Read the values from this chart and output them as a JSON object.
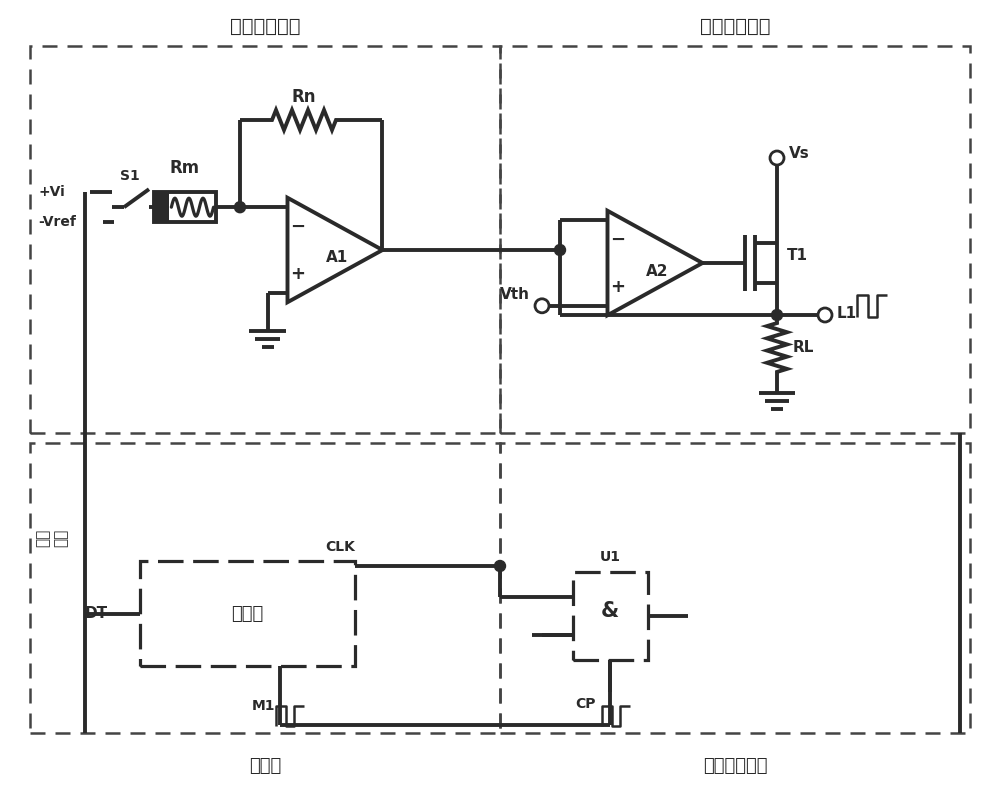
{
  "bg_color": "#ffffff",
  "line_color": "#2a2a2a",
  "line_width": 2.8,
  "label_fanxiang": "反相放大电路",
  "label_bijiao": "比较转换电路",
  "label_jishuqi": "计数器",
  "label_maichong": "脉冲控制电路",
  "label_dingshi": "定时\n信号",
  "text_A1": "A1",
  "text_A2": "A2",
  "text_Rm": "Rm",
  "text_Rn": "Rn",
  "text_RL": "RL",
  "text_T1": "T1",
  "text_U1": "U1",
  "text_Vi_pos": "+Vi",
  "text_Vi_neg": "-Vref",
  "text_S1": "S1",
  "text_Vth": "Vth",
  "text_Vs": "Vs",
  "text_L1": "L1",
  "text_DT": "DT",
  "text_CLK": "CLK",
  "text_M1": "M1",
  "text_CP": "CP",
  "text_counter": "计数器",
  "text_and": "&"
}
